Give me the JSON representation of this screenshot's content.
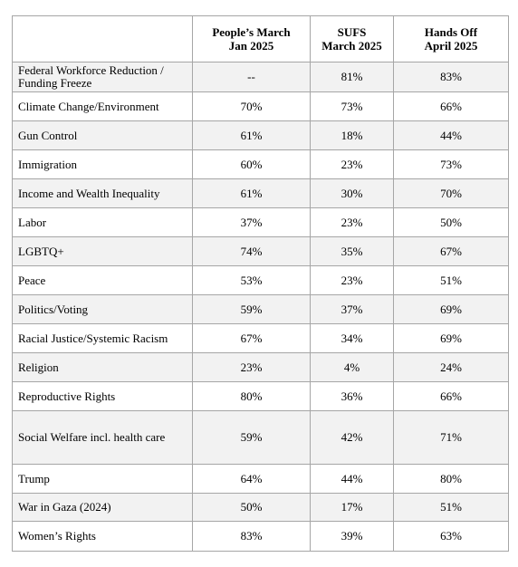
{
  "table": {
    "headers": {
      "topic": "",
      "col1": {
        "line1": "People’s March",
        "line2": "Jan 2025"
      },
      "col2": {
        "line1": "SUFS",
        "line2": "March 2025"
      },
      "col3": {
        "line1": "Hands Off",
        "line2": "April 2025"
      }
    },
    "rows": [
      {
        "topic_line1": "Federal Workforce Reduction /",
        "topic_line2": "Funding Freeze",
        "c1": "--",
        "c2": "81%",
        "c3": "83%"
      },
      {
        "topic": "Climate Change/Environment",
        "c1": "70%",
        "c2": "73%",
        "c3": "66%"
      },
      {
        "topic": "Gun Control",
        "c1": "61%",
        "c2": "18%",
        "c3": "44%"
      },
      {
        "topic": "Immigration",
        "c1": "60%",
        "c2": "23%",
        "c3": "73%"
      },
      {
        "topic": "Income and Wealth Inequality",
        "c1": "61%",
        "c2": "30%",
        "c3": "70%"
      },
      {
        "topic": "Labor",
        "c1": "37%",
        "c2": "23%",
        "c3": "50%"
      },
      {
        "topic": "LGBTQ+",
        "c1": "74%",
        "c2": "35%",
        "c3": "67%"
      },
      {
        "topic": "Peace",
        "c1": "53%",
        "c2": "23%",
        "c3": "51%"
      },
      {
        "topic": "Politics/Voting",
        "c1": "59%",
        "c2": "37%",
        "c3": "69%"
      },
      {
        "topic": "Racial Justice/Systemic Racism",
        "c1": "67%",
        "c2": "34%",
        "c3": "69%"
      },
      {
        "topic": "Religion",
        "c1": "23%",
        "c2": "4%",
        "c3": "24%"
      },
      {
        "topic": "Reproductive Rights",
        "c1": "80%",
        "c2": "36%",
        "c3": "66%"
      },
      {
        "topic": "Social Welfare incl. health care",
        "c1": "59%",
        "c2": "42%",
        "c3": "71%"
      },
      {
        "topic": "Trump",
        "c1": "64%",
        "c2": "44%",
        "c3": "80%"
      },
      {
        "topic": "War in Gaza (2024)",
        "c1": "50%",
        "c2": "17%",
        "c3": "51%"
      },
      {
        "topic": "Women’s Rights",
        "c1": "83%",
        "c2": "39%",
        "c3": "63%"
      }
    ]
  }
}
